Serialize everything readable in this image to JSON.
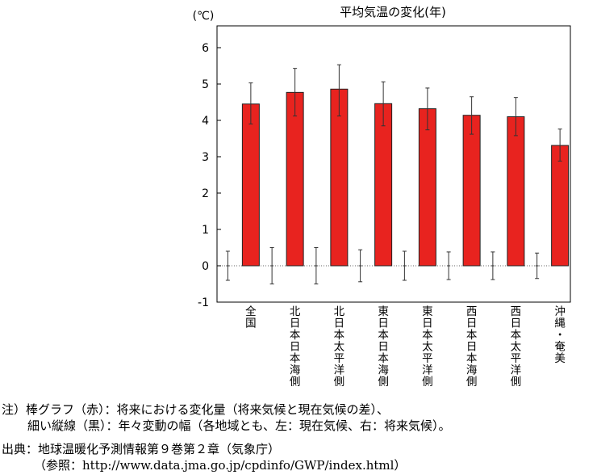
{
  "chart_data": {
    "type": "bar",
    "title": "平均気温の変化(年)",
    "ylabel": "(℃)",
    "xlabel": "",
    "ylim": [
      -1,
      6.6
    ],
    "yticks": [
      -1,
      0,
      1,
      2,
      3,
      4,
      5,
      6
    ],
    "grid": false,
    "zero_line": "dotted",
    "colors": {
      "bar": "#e8231f",
      "bar_edge": "#222222",
      "error": "#333333"
    },
    "categories": [
      "全国",
      "北日本日本海側",
      "北日本太平洋側",
      "東日本日本海側",
      "東日本太平洋側",
      "西日本日本海側",
      "西日本太平洋側",
      "沖縄・奄美"
    ],
    "series": [
      {
        "values": [
          4.45,
          4.77,
          4.86,
          4.46,
          4.32,
          4.14,
          4.1,
          3.31
        ],
        "error_low": [
          3.9,
          4.12,
          4.12,
          3.85,
          3.74,
          3.62,
          3.58,
          2.88
        ],
        "error_high": [
          5.03,
          5.43,
          5.53,
          5.06,
          4.89,
          4.65,
          4.63,
          3.76
        ]
      }
    ],
    "present_variability": {
      "low": [
        -0.4,
        -0.5,
        -0.5,
        -0.44,
        -0.4,
        -0.38,
        -0.38,
        -0.35
      ],
      "high": [
        0.4,
        0.5,
        0.5,
        0.44,
        0.4,
        0.38,
        0.38,
        0.35
      ]
    }
  },
  "notes": {
    "line1": "注）棒グラフ（赤）：将来における変化量（将来気候と現在気候の差）、",
    "line2": "細い縦線（黒）：年々変動の幅（各地域とも、左：現在気候、右：将来気候）。",
    "line3": "出典：地球温暖化予測情報第９巻第２章（気象庁）",
    "line4": "（参照：http://www.data.jma.go.jp/cpdinfo/GWP/index.html）"
  }
}
